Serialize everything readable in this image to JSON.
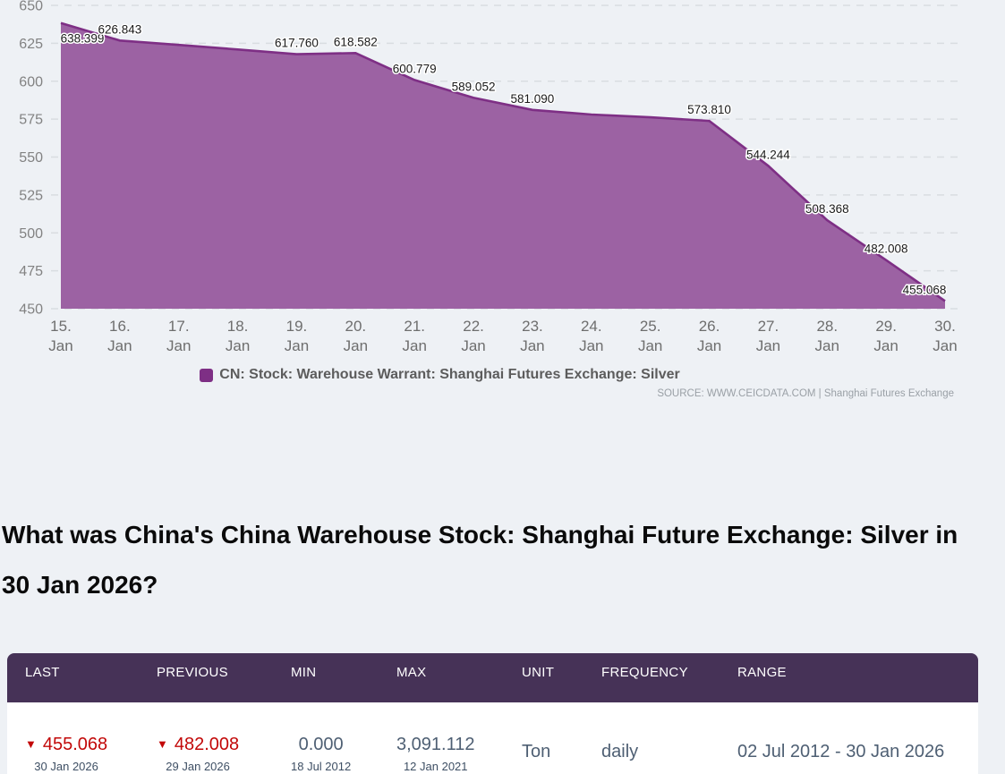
{
  "theme": {
    "page_bg": "#eef1f5",
    "table_header_bg": "#463257",
    "negative_red": "#c20808",
    "value_slate": "#4e5f73",
    "date_slate": "#3e4f64",
    "heading_color": "#0a0a0a"
  },
  "chart_data": {
    "type": "area",
    "title": "",
    "categories": [
      "15. Jan",
      "16. Jan",
      "17. Jan",
      "18. Jan",
      "19. Jan",
      "20. Jan",
      "21. Jan",
      "22. Jan",
      "23. Jan",
      "24. Jan",
      "25. Jan",
      "26. Jan",
      "27. Jan",
      "28. Jan",
      "29. Jan",
      "30. Jan"
    ],
    "values": [
      638.399,
      626.843,
      623.9,
      620.9,
      617.76,
      618.582,
      600.779,
      589.052,
      581.09,
      578.0,
      576.2,
      573.81,
      544.244,
      508.368,
      482.008,
      455.068
    ],
    "point_labels": [
      "638.399",
      "626.843",
      "",
      "",
      "617.760",
      "618.582",
      "600.779",
      "589.052",
      "581.090",
      "",
      "",
      "573.810",
      "544.244",
      "508.368",
      "482.008",
      "455.068"
    ],
    "ylim": [
      450,
      650
    ],
    "ytick_step": 25,
    "ytick_labels": [
      "450",
      "475",
      "500",
      "525",
      "550",
      "575",
      "600",
      "625",
      "650"
    ],
    "grid": true,
    "legend_position": "bottom-center",
    "series_name": "CN: Stock: Warehouse Warrant: Shanghai Futures Exchange: Silver",
    "source_text": "SOURCE: WWW.CEICDATA.COM | Shanghai Futures Exchange",
    "colors": {
      "area_fill": "#9c62a3",
      "line": "#7e2f85",
      "label_text": "#1a1a1a",
      "label_halo": "#ffffff",
      "gridline": "#d9dde1",
      "axis_text": "#828282"
    }
  },
  "question": {
    "text": "What was China's China Warehouse Stock: Shanghai Future Exchange: Silver in 30 Jan 2026?"
  },
  "table": {
    "headers": [
      "LAST",
      "PREVIOUS",
      "MIN",
      "MAX",
      "UNIT",
      "FREQUENCY",
      "RANGE"
    ],
    "cells": [
      {
        "value": "455.068",
        "date": "30 Jan 2026",
        "direction": "down"
      },
      {
        "value": "482.008",
        "date": "29 Jan 2026",
        "direction": "down"
      },
      {
        "value": "0.000",
        "date": "18 Jul 2012",
        "direction": "none"
      },
      {
        "value": "3,091.112",
        "date": "12 Jan 2021",
        "direction": "none"
      },
      {
        "value": "Ton",
        "direction": "none"
      },
      {
        "value": "daily",
        "direction": "none"
      },
      {
        "value": "02 Jul 2012 - 30 Jan 2026",
        "direction": "none"
      }
    ]
  }
}
